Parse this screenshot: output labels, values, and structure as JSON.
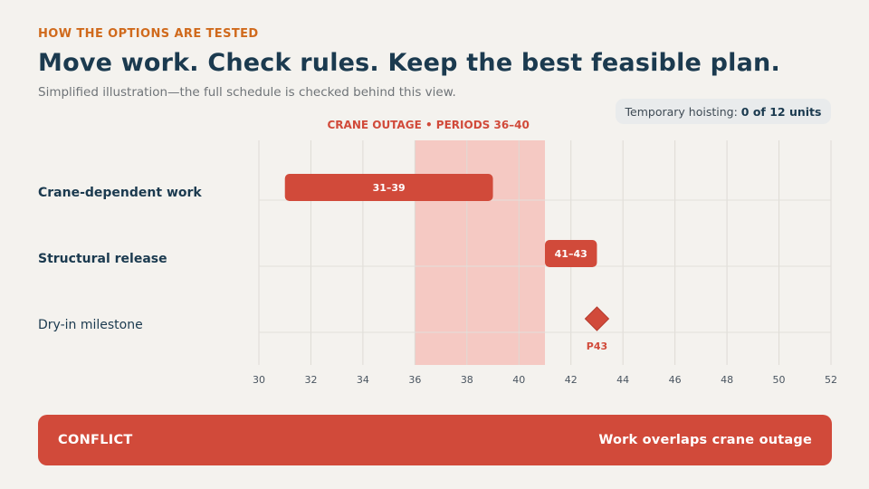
{
  "header": {
    "eyebrow": "HOW THE OPTIONS ARE TESTED",
    "title": "Move work. Check rules. Keep the best feasible plan.",
    "subtitle": "Simplified illustration—the full schedule is checked behind this view."
  },
  "hoisting": {
    "label": "Temporary hoisting:",
    "value": "0 of 12 units"
  },
  "rows": [
    {
      "label": "Crane-dependent work",
      "bold": true
    },
    {
      "label": "Structural release",
      "bold": true
    },
    {
      "label": "Dry-in milestone",
      "bold": false
    }
  ],
  "chart_data": {
    "type": "gantt",
    "xlim": [
      30,
      52
    ],
    "x_ticks": [
      30,
      32,
      34,
      36,
      38,
      40,
      42,
      44,
      46,
      48,
      50,
      52
    ],
    "grid": true,
    "outage": {
      "label": "CRANE OUTAGE  •  PERIODS 36–40",
      "start": 36,
      "end": 41
    },
    "bars": [
      {
        "row": 0,
        "start": 31,
        "end": 39,
        "label": "31–39"
      },
      {
        "row": 1,
        "start": 41,
        "end": 43,
        "label": "41–43"
      }
    ],
    "milestones": [
      {
        "row": 2,
        "x": 43,
        "label": "P43"
      }
    ]
  },
  "banner": {
    "status": "CONFLICT",
    "message": "Work overlaps crane outage"
  },
  "colors": {
    "accent": "#d14a3a",
    "outage_fill": "#f5c9c3",
    "eyebrow": "#d06a1c",
    "title": "#1b3a4f"
  }
}
